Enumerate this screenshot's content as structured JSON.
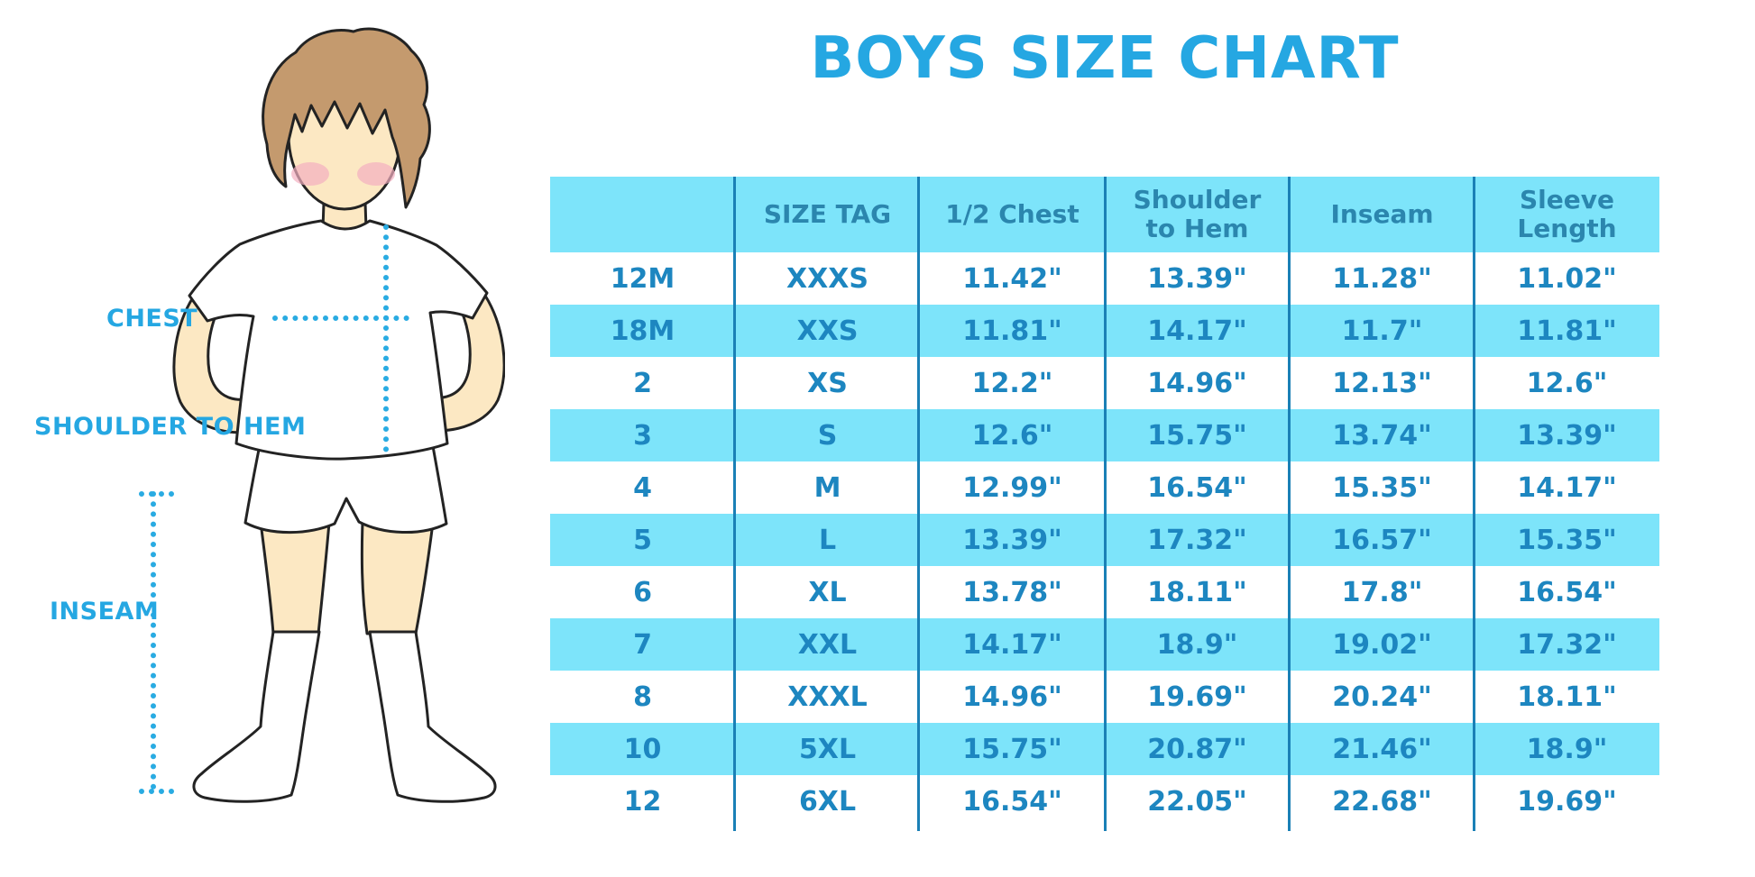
{
  "title": "BOYS SIZE CHART",
  "figure": {
    "labels": [
      "CHEST",
      "SHOULDER TO HEM",
      "INSEAM"
    ]
  },
  "chart_data": {
    "type": "table",
    "title": "BOYS SIZE CHART",
    "columns": [
      "",
      "SIZE TAG",
      "1/2 Chest",
      "Shoulder to Hem",
      "Inseam",
      "Sleeve Length"
    ],
    "rows": [
      [
        "12M",
        "XXXS",
        "11.42\"",
        "13.39\"",
        "11.28\"",
        "11.02\""
      ],
      [
        "18M",
        "XXS",
        "11.81\"",
        "14.17\"",
        "11.7\"",
        "11.81\""
      ],
      [
        "2",
        "XS",
        "12.2\"",
        "14.96\"",
        "12.13\"",
        "12.6\""
      ],
      [
        "3",
        "S",
        "12.6\"",
        "15.75\"",
        "13.74\"",
        "13.39\""
      ],
      [
        "4",
        "M",
        "12.99\"",
        "16.54\"",
        "15.35\"",
        "14.17\""
      ],
      [
        "5",
        "L",
        "13.39\"",
        "17.32\"",
        "16.57\"",
        "15.35\""
      ],
      [
        "6",
        "XL",
        "13.78\"",
        "18.11\"",
        "17.8\"",
        "16.54\""
      ],
      [
        "7",
        "XXL",
        "14.17\"",
        "18.9\"",
        "19.02\"",
        "17.32\""
      ],
      [
        "8",
        "XXXL",
        "14.96\"",
        "19.69\"",
        "20.24\"",
        "18.11\""
      ],
      [
        "10",
        "5XL",
        "15.75\"",
        "20.87\"",
        "21.46\"",
        "18.9\""
      ],
      [
        "12",
        "6XL",
        "16.54\"",
        "22.05\"",
        "22.68\"",
        "19.69\""
      ]
    ],
    "layout": {
      "striped_rows": "alternating white and cyan, header cyan",
      "column_dividers": "vertical blue lines between all columns extending below last row"
    }
  },
  "colors": {
    "accent_blue": "#25A7E2",
    "stripe_cyan": "#7DE4FA",
    "header_text_blue": "#2B86AE",
    "table_text_blue": "#1D86C0",
    "divider_blue": "#1A80B6",
    "dotted_line_blue": "#29ABE2",
    "hair_brown": "#C49A6E",
    "skin_tone": "#FCE8C3",
    "blush_pink": "#F3AFC0"
  }
}
